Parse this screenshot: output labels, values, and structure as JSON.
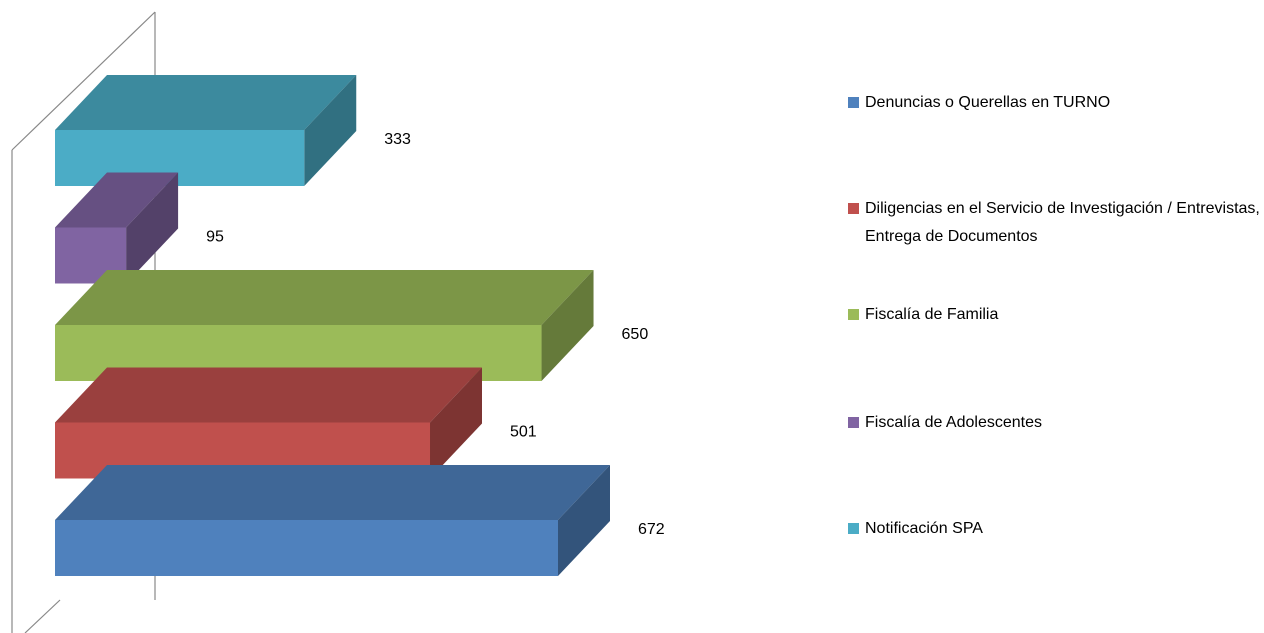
{
  "chart_data": {
    "type": "bar3d",
    "series": [
      {
        "name": "Denuncias o Querellas en TURNO",
        "color": "#4f81bd",
        "values": [
          672
        ]
      },
      {
        "name": "Diligencias en el Servicio de Investigación / Entrevistas, Entrega de Documentos",
        "color": "#c0504d",
        "values": [
          501
        ]
      },
      {
        "name": "Fiscalía de Familia",
        "color": "#9bbb59",
        "values": [
          650
        ]
      },
      {
        "name": "Fiscalía de Adolescentes",
        "color": "#8064a2",
        "values": [
          95
        ]
      },
      {
        "name": "Notificación SPA",
        "color": "#4bacc6",
        "values": [
          333
        ]
      }
    ],
    "legend": "right"
  }
}
